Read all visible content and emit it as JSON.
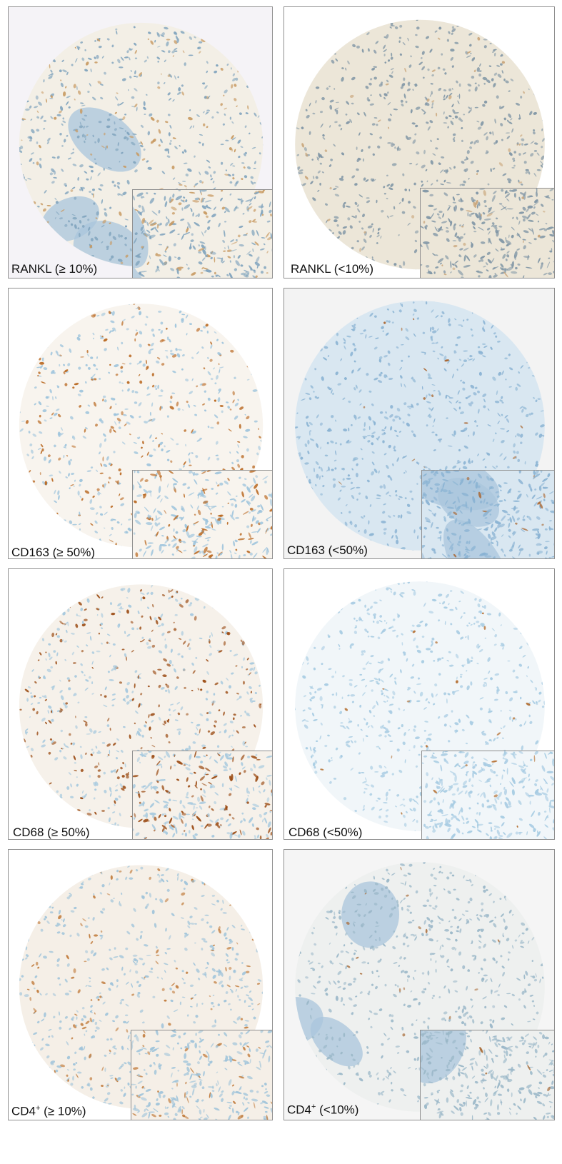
{
  "panels": [
    {
      "id": "rankl-high",
      "label": "RANKL (≥ 10%)",
      "tissue_bg": "#f3efe6",
      "nuclei": "#7fa3bd",
      "stain": "#c89a62",
      "stain_density": 0.35,
      "bone_regions": true,
      "page_bg": "#f5f3f7"
    },
    {
      "id": "rankl-low",
      "label": "RANKL (<10%)",
      "tissue_bg": "#ece6d8",
      "nuclei": "#7f95a5",
      "stain": "#c9a57a",
      "stain_density": 0.12,
      "bone_regions": false,
      "page_bg": "#ffffff"
    },
    {
      "id": "cd163-high",
      "label": "CD163 (≥ 50%)",
      "tissue_bg": "#f8f4ee",
      "nuclei": "#9cc3dc",
      "stain": "#b8661e",
      "stain_density": 0.45,
      "bone_regions": false,
      "page_bg": "#ffffff"
    },
    {
      "id": "cd163-low",
      "label": "CD163 (<50%)",
      "tissue_bg": "#d9e7f1",
      "nuclei": "#8ab3d3",
      "stain": "#a8622a",
      "stain_density": 0.06,
      "bone_regions": true,
      "page_bg": "#f3f3f3"
    },
    {
      "id": "cd68-high",
      "label": "CD68 (≥ 50%)",
      "tissue_bg": "#f6f1ea",
      "nuclei": "#a4c8de",
      "stain": "#9a4a12",
      "stain_density": 0.6,
      "bone_regions": false,
      "page_bg": "#ffffff"
    },
    {
      "id": "cd68-low",
      "label": "CD68 (<50%)",
      "tissue_bg": "#f1f6f9",
      "nuclei": "#a6cbe2",
      "stain": "#b26a2a",
      "stain_density": 0.05,
      "bone_regions": false,
      "page_bg": "#ffffff"
    },
    {
      "id": "cd4-high",
      "label_main": "CD4",
      "label_sup": "+",
      "label_rest": " (≥ 10%)",
      "tissue_bg": "#f5efe7",
      "nuclei": "#9ec3da",
      "stain": "#c07a3a",
      "stain_density": 0.3,
      "bone_regions": false,
      "page_bg": "#ffffff"
    },
    {
      "id": "cd4-low",
      "label_main": "CD4",
      "label_sup": "+",
      "label_rest": " (<10%)",
      "tissue_bg": "#eef0ef",
      "nuclei": "#9ab7c8",
      "stain": "#a86a36",
      "stain_density": 0.05,
      "bone_regions": true,
      "page_bg": "#f5f5f5"
    }
  ],
  "colors": {
    "border": "#8f8f8f",
    "label": "#111111"
  }
}
